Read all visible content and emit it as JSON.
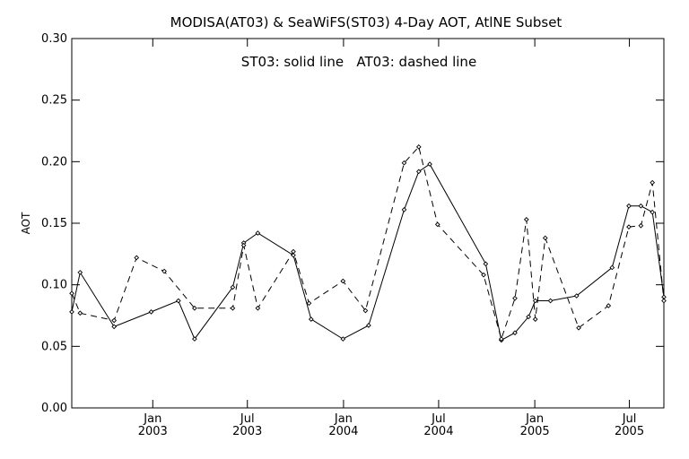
{
  "chart_data": {
    "type": "line",
    "title": "MODISA(AT03) & SeaWiFS(ST03) 4-Day AOT, AtlNE Subset",
    "annotation": "ST03: solid line   AT03: dashed line",
    "ylabel": "AOT",
    "xlabel": "",
    "xlim": [
      "2002-07-30",
      "2005-09-05"
    ],
    "ylim": [
      0,
      0.3
    ],
    "yticks": [
      0.0,
      0.05,
      0.1,
      0.15,
      0.2,
      0.25,
      0.3
    ],
    "ytick_labels": [
      "0.00",
      "0.05",
      "0.10",
      "0.15",
      "0.20",
      "0.25",
      "0.30"
    ],
    "xticks": [
      {
        "date": "2003-01-01",
        "month": "Jan",
        "year": "2003"
      },
      {
        "date": "2003-07-01",
        "month": "Jul",
        "year": "2003"
      },
      {
        "date": "2004-01-01",
        "month": "Jan",
        "year": "2004"
      },
      {
        "date": "2004-07-01",
        "month": "Jul",
        "year": "2004"
      },
      {
        "date": "2005-01-01",
        "month": "Jan",
        "year": "2005"
      },
      {
        "date": "2005-07-01",
        "month": "Jul",
        "year": "2005"
      }
    ],
    "grid": false,
    "series": [
      {
        "name": "ST03",
        "style": "solid",
        "color": "#000000",
        "points": [
          [
            "2002-07-30",
            0.078
          ],
          [
            "2002-08-15",
            0.11
          ],
          [
            "2002-10-19",
            0.066
          ],
          [
            "2002-12-29",
            0.078
          ],
          [
            "2003-02-19",
            0.087
          ],
          [
            "2003-03-22",
            0.056
          ],
          [
            "2003-06-03",
            0.098
          ],
          [
            "2003-06-24",
            0.134
          ],
          [
            "2003-07-21",
            0.142
          ],
          [
            "2003-09-27",
            0.124
          ],
          [
            "2003-10-31",
            0.072
          ],
          [
            "2003-12-31",
            0.056
          ],
          [
            "2004-02-18",
            0.067
          ],
          [
            "2004-04-26",
            0.161
          ],
          [
            "2004-05-24",
            0.192
          ],
          [
            "2004-06-14",
            0.198
          ],
          [
            "2004-09-29",
            0.117
          ],
          [
            "2004-10-29",
            0.055
          ],
          [
            "2004-11-24",
            0.061
          ],
          [
            "2004-12-20",
            0.074
          ],
          [
            "2005-01-02",
            0.087
          ],
          [
            "2005-01-31",
            0.087
          ],
          [
            "2005-03-22",
            0.091
          ],
          [
            "2005-05-29",
            0.114
          ],
          [
            "2005-06-30",
            0.164
          ],
          [
            "2005-07-23",
            0.164
          ],
          [
            "2005-08-14",
            0.159
          ],
          [
            "2005-09-05",
            0.09
          ]
        ]
      },
      {
        "name": "AT03",
        "style": "dashed",
        "color": "#000000",
        "points": [
          [
            "2002-07-30",
            0.093
          ],
          [
            "2002-08-15",
            0.077
          ],
          [
            "2002-10-19",
            0.071
          ],
          [
            "2002-12-01",
            0.122
          ],
          [
            "2003-01-23",
            0.111
          ],
          [
            "2003-03-22",
            0.081
          ],
          [
            "2003-06-03",
            0.081
          ],
          [
            "2003-06-24",
            0.132
          ],
          [
            "2003-07-21",
            0.081
          ],
          [
            "2003-09-27",
            0.127
          ],
          [
            "2003-10-27",
            0.085
          ],
          [
            "2003-12-31",
            0.103
          ],
          [
            "2004-02-12",
            0.079
          ],
          [
            "2004-04-26",
            0.199
          ],
          [
            "2004-05-24",
            0.212
          ],
          [
            "2004-06-29",
            0.149
          ],
          [
            "2004-09-25",
            0.108
          ],
          [
            "2004-10-29",
            0.056
          ],
          [
            "2004-11-24",
            0.089
          ],
          [
            "2004-12-16",
            0.153
          ],
          [
            "2005-01-02",
            0.072
          ],
          [
            "2005-01-21",
            0.138
          ],
          [
            "2005-03-26",
            0.065
          ],
          [
            "2005-05-22",
            0.083
          ],
          [
            "2005-06-30",
            0.147
          ],
          [
            "2005-07-23",
            0.148
          ],
          [
            "2005-08-14",
            0.183
          ],
          [
            "2005-09-05",
            0.087
          ]
        ]
      }
    ]
  }
}
